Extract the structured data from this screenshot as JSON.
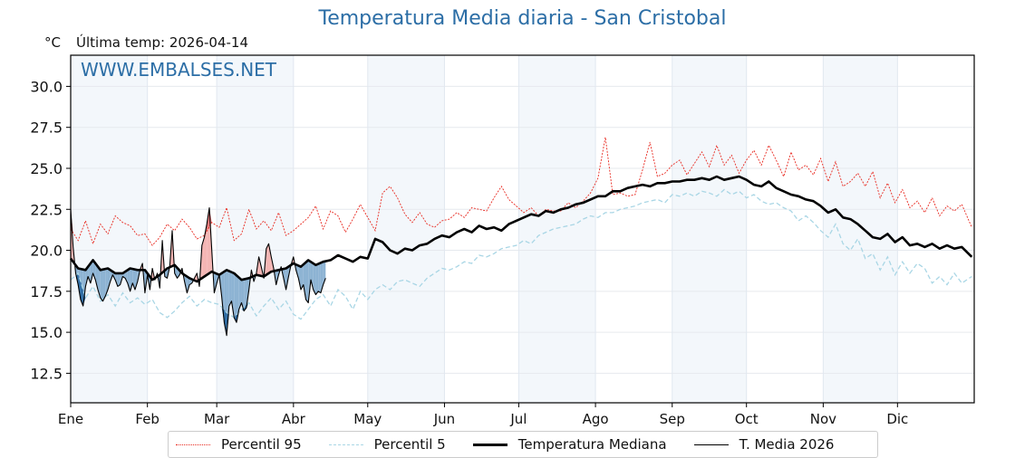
{
  "chart_data": {
    "type": "line",
    "title": "Temperatura Media diaria - San Cristobal",
    "ylabel": "°C",
    "subtitle": "Última temp: 2026-04-14",
    "watermark": "WWW.EMBALSES.NET",
    "xlabel": "",
    "ylim": [
      10.7,
      31.9
    ],
    "xlim_days": [
      0,
      365
    ],
    "grid": true,
    "legend_position": "bottom-center",
    "y_ticks": [
      "12.5",
      "15.0",
      "17.5",
      "20.0",
      "22.5",
      "25.0",
      "27.5",
      "30.0"
    ],
    "y_tick_values": [
      12.5,
      15.0,
      17.5,
      20.0,
      22.5,
      25.0,
      27.5,
      30.0
    ],
    "x_tick_labels": [
      "Ene",
      "Feb",
      "Mar",
      "Abr",
      "May",
      "Jun",
      "Jul",
      "Ago",
      "Sep",
      "Oct",
      "Nov",
      "Dic"
    ],
    "x_tick_days": [
      0,
      31,
      59,
      90,
      120,
      151,
      181,
      212,
      243,
      273,
      304,
      334
    ],
    "colors": {
      "p95": "#e8281f",
      "p5": "#a9d6e5",
      "median": "#000000",
      "t2026": "#000000",
      "above_fill": "#f4b6b4",
      "above_fill_strong": "#e8797a",
      "below_fill": "#8db3d3",
      "below_fill_strong": "#2f6ea6",
      "band": "#f3f7fb",
      "title": "#2c6ea6"
    },
    "series": [
      {
        "name": "Percentil 95",
        "style": "dotted",
        "days": [
          0,
          3,
          6,
          9,
          12,
          15,
          18,
          21,
          24,
          27,
          30,
          33,
          36,
          39,
          42,
          45,
          48,
          51,
          54,
          57,
          60,
          63,
          66,
          69,
          72,
          75,
          78,
          81,
          84,
          87,
          90,
          93,
          96,
          99,
          102,
          105,
          108,
          111,
          114,
          117,
          120,
          123,
          126,
          129,
          132,
          135,
          138,
          141,
          144,
          147,
          150,
          153,
          156,
          159,
          162,
          165,
          168,
          171,
          174,
          177,
          180,
          183,
          186,
          189,
          192,
          195,
          198,
          201,
          204,
          207,
          210,
          213,
          216,
          219,
          222,
          225,
          228,
          231,
          234,
          237,
          240,
          243,
          246,
          249,
          252,
          255,
          258,
          261,
          264,
          267,
          270,
          273,
          276,
          279,
          282,
          285,
          288,
          291,
          294,
          297,
          300,
          303,
          306,
          309,
          312,
          315,
          318,
          321,
          324,
          327,
          330,
          333,
          336,
          339,
          342,
          345,
          348,
          351,
          354,
          357,
          360,
          364
        ],
        "values": [
          21.3,
          20.6,
          21.8,
          20.4,
          21.6,
          21.0,
          22.1,
          21.7,
          21.5,
          20.9,
          21.0,
          20.3,
          20.8,
          21.6,
          21.2,
          21.9,
          21.4,
          20.7,
          20.9,
          21.7,
          21.4,
          22.6,
          20.6,
          21.0,
          22.5,
          21.3,
          21.8,
          21.2,
          22.3,
          20.9,
          21.2,
          21.6,
          22.0,
          22.7,
          21.3,
          22.4,
          22.1,
          21.1,
          21.9,
          22.8,
          22.0,
          21.2,
          23.5,
          23.9,
          23.2,
          22.2,
          21.7,
          22.3,
          21.6,
          21.4,
          21.8,
          21.9,
          22.3,
          22.0,
          22.6,
          22.5,
          22.4,
          23.2,
          23.9,
          23.1,
          22.7,
          22.3,
          22.6,
          22.1,
          22.5,
          22.4,
          22.4,
          22.9,
          22.6,
          23.0,
          23.5,
          24.4,
          26.9,
          23.4,
          23.5,
          23.3,
          23.4,
          24.9,
          26.6,
          24.5,
          24.7,
          25.2,
          25.5,
          24.6,
          25.3,
          26.0,
          25.1,
          26.4,
          25.2,
          25.8,
          24.7,
          25.5,
          26.1,
          25.2,
          26.4,
          25.5,
          24.5,
          26.0,
          24.9,
          25.2,
          24.6,
          25.6,
          24.2,
          25.4,
          23.9,
          24.2,
          24.7,
          23.9,
          24.8,
          23.2,
          24.1,
          22.9,
          23.7,
          22.6,
          23.0,
          22.3,
          23.2,
          22.1,
          22.7,
          22.4,
          22.8,
          21.4
        ]
      },
      {
        "name": "Percentil 5",
        "style": "dashed",
        "days": [
          0,
          3,
          6,
          9,
          12,
          15,
          18,
          21,
          24,
          27,
          30,
          33,
          36,
          39,
          42,
          45,
          48,
          51,
          54,
          57,
          60,
          63,
          66,
          69,
          72,
          75,
          78,
          81,
          84,
          87,
          90,
          93,
          96,
          99,
          102,
          105,
          108,
          111,
          114,
          117,
          120,
          123,
          126,
          129,
          132,
          135,
          138,
          141,
          144,
          147,
          150,
          153,
          156,
          159,
          162,
          165,
          168,
          171,
          174,
          177,
          180,
          183,
          186,
          189,
          192,
          195,
          198,
          201,
          204,
          207,
          210,
          213,
          216,
          219,
          222,
          225,
          228,
          231,
          234,
          237,
          240,
          243,
          246,
          249,
          252,
          255,
          258,
          261,
          264,
          267,
          270,
          273,
          276,
          279,
          282,
          285,
          288,
          291,
          294,
          297,
          300,
          303,
          306,
          309,
          312,
          315,
          318,
          321,
          324,
          327,
          330,
          333,
          336,
          339,
          342,
          345,
          348,
          351,
          354,
          357,
          360,
          364
        ],
        "values": [
          18.2,
          18.6,
          17.1,
          17.8,
          16.9,
          17.3,
          16.6,
          17.4,
          16.8,
          17.1,
          16.7,
          17.0,
          16.2,
          15.9,
          16.3,
          16.8,
          17.2,
          16.6,
          17.0,
          16.8,
          16.7,
          16.2,
          15.9,
          16.4,
          16.8,
          16.0,
          16.6,
          17.1,
          16.4,
          16.9,
          16.1,
          15.8,
          16.4,
          17.0,
          17.3,
          16.6,
          17.6,
          17.2,
          16.4,
          17.5,
          17.0,
          17.6,
          17.9,
          17.6,
          18.1,
          18.2,
          18.0,
          17.8,
          18.3,
          18.6,
          18.9,
          18.8,
          19.0,
          19.3,
          19.2,
          19.7,
          19.6,
          19.8,
          20.1,
          20.2,
          20.3,
          20.6,
          20.4,
          20.9,
          21.1,
          21.3,
          21.4,
          21.5,
          21.6,
          21.9,
          22.1,
          22.0,
          22.3,
          22.3,
          22.5,
          22.6,
          22.7,
          22.9,
          23.0,
          23.1,
          22.9,
          23.4,
          23.3,
          23.5,
          23.3,
          23.6,
          23.5,
          23.3,
          23.7,
          23.4,
          23.6,
          23.2,
          23.4,
          23.0,
          22.8,
          22.9,
          22.6,
          22.4,
          21.8,
          22.1,
          21.7,
          21.2,
          20.8,
          21.6,
          20.4,
          20.0,
          20.7,
          19.5,
          19.8,
          18.8,
          19.6,
          18.5,
          19.3,
          18.6,
          19.2,
          18.9,
          18.0,
          18.4,
          17.9,
          18.6,
          18.0,
          18.4
        ]
      },
      {
        "name": "Temperatura Mediana",
        "style": "solid-thick",
        "days": [
          0,
          3,
          6,
          9,
          12,
          15,
          18,
          21,
          24,
          27,
          30,
          33,
          36,
          39,
          42,
          45,
          48,
          51,
          54,
          57,
          60,
          63,
          66,
          69,
          72,
          75,
          78,
          81,
          84,
          87,
          90,
          93,
          96,
          99,
          102,
          105,
          108,
          111,
          114,
          117,
          120,
          123,
          126,
          129,
          132,
          135,
          138,
          141,
          144,
          147,
          150,
          153,
          156,
          159,
          162,
          165,
          168,
          171,
          174,
          177,
          180,
          183,
          186,
          189,
          192,
          195,
          198,
          201,
          204,
          207,
          210,
          213,
          216,
          219,
          222,
          225,
          228,
          231,
          234,
          237,
          240,
          243,
          246,
          249,
          252,
          255,
          258,
          261,
          264,
          267,
          270,
          273,
          276,
          279,
          282,
          285,
          288,
          291,
          294,
          297,
          300,
          303,
          306,
          309,
          312,
          315,
          318,
          321,
          324,
          327,
          330,
          333,
          336,
          339,
          342,
          345,
          348,
          351,
          354,
          357,
          360,
          364
        ],
        "values": [
          19.5,
          18.9,
          18.8,
          19.4,
          18.8,
          18.9,
          18.6,
          18.6,
          18.9,
          18.8,
          18.8,
          18.2,
          18.5,
          18.9,
          19.1,
          18.6,
          18.3,
          18.1,
          18.4,
          18.7,
          18.5,
          18.8,
          18.6,
          18.2,
          18.3,
          18.5,
          18.4,
          18.7,
          18.8,
          18.9,
          19.2,
          19.0,
          19.4,
          19.1,
          19.3,
          19.4,
          19.7,
          19.5,
          19.3,
          19.6,
          19.5,
          20.7,
          20.5,
          20.0,
          19.8,
          20.1,
          20.0,
          20.3,
          20.4,
          20.7,
          20.9,
          20.8,
          21.1,
          21.3,
          21.1,
          21.5,
          21.3,
          21.4,
          21.2,
          21.6,
          21.8,
          22.0,
          22.2,
          22.1,
          22.4,
          22.3,
          22.5,
          22.6,
          22.8,
          22.9,
          23.1,
          23.3,
          23.3,
          23.6,
          23.6,
          23.8,
          23.9,
          24.0,
          23.9,
          24.1,
          24.1,
          24.2,
          24.2,
          24.3,
          24.3,
          24.4,
          24.3,
          24.5,
          24.3,
          24.4,
          24.5,
          24.3,
          24.0,
          23.9,
          24.2,
          23.8,
          23.6,
          23.4,
          23.3,
          23.1,
          23.0,
          22.7,
          22.3,
          22.5,
          22.0,
          21.9,
          21.6,
          21.2,
          20.8,
          20.7,
          21.0,
          20.5,
          20.8,
          20.3,
          20.4,
          20.2,
          20.4,
          20.1,
          20.3,
          20.1,
          20.2,
          19.6
        ]
      },
      {
        "name": "T. Media 2026",
        "style": "solid-thin",
        "days": [
          0,
          1,
          2,
          3,
          4,
          5,
          6,
          7,
          8,
          9,
          10,
          11,
          12,
          13,
          14,
          15,
          16,
          17,
          18,
          19,
          20,
          21,
          22,
          23,
          24,
          25,
          26,
          27,
          28,
          29,
          30,
          31,
          32,
          33,
          34,
          35,
          36,
          37,
          38,
          39,
          40,
          41,
          42,
          43,
          44,
          45,
          46,
          47,
          48,
          49,
          50,
          51,
          52,
          53,
          54,
          55,
          56,
          57,
          58,
          59,
          60,
          61,
          62,
          63,
          64,
          65,
          66,
          67,
          68,
          69,
          70,
          71,
          72,
          73,
          74,
          75,
          76,
          77,
          78,
          79,
          80,
          81,
          82,
          83,
          84,
          85,
          86,
          87,
          88,
          89,
          90,
          91,
          92,
          93,
          94,
          95,
          96,
          97,
          98,
          99,
          100,
          101,
          102,
          103
        ],
        "values": [
          22.5,
          20.2,
          18.6,
          17.9,
          17.0,
          16.6,
          17.8,
          18.4,
          18.0,
          18.6,
          18.2,
          17.6,
          17.1,
          16.9,
          17.2,
          17.6,
          18.1,
          18.5,
          18.2,
          17.8,
          17.9,
          18.4,
          18.3,
          18.0,
          17.5,
          18.0,
          17.6,
          18.1,
          18.8,
          19.2,
          17.4,
          18.5,
          17.6,
          18.9,
          18.2,
          18.6,
          17.7,
          20.6,
          18.4,
          18.3,
          19.0,
          21.2,
          18.6,
          18.3,
          18.5,
          18.9,
          18.1,
          17.4,
          17.9,
          18.0,
          18.3,
          18.6,
          17.8,
          20.3,
          20.8,
          21.6,
          22.6,
          20.0,
          17.4,
          18.0,
          18.5,
          17.2,
          15.6,
          14.8,
          16.6,
          16.9,
          15.9,
          15.6,
          16.4,
          16.8,
          16.3,
          16.5,
          17.6,
          18.8,
          18.1,
          18.6,
          19.6,
          19.0,
          18.3,
          20.1,
          20.4,
          19.6,
          18.9,
          17.9,
          18.5,
          19.0,
          18.3,
          17.6,
          18.4,
          19.1,
          19.6,
          18.8,
          18.3,
          17.6,
          17.9,
          17.0,
          16.8,
          18.2,
          17.6,
          17.3,
          17.5,
          17.4,
          17.9,
          18.3
        ]
      }
    ],
    "legend": [
      "Percentil 95",
      "Percentil 5",
      "Temperatura Mediana",
      "T. Media 2026"
    ]
  }
}
